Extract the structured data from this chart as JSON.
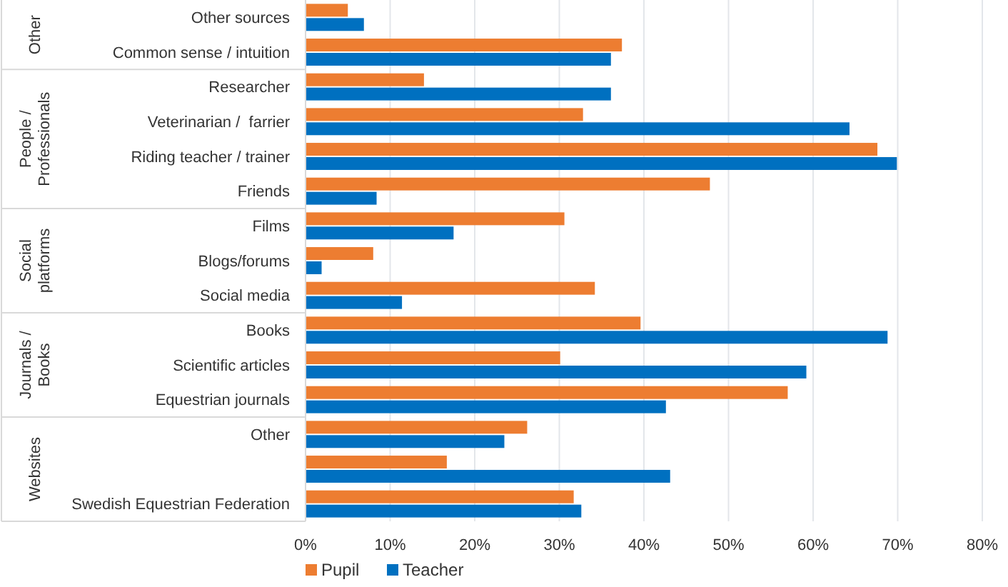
{
  "chart_data": {
    "type": "bar",
    "orientation": "horizontal",
    "categories": [
      "Other sources",
      "Common sense / intuition",
      "Researcher",
      "Veterinarian /  farrier",
      "Riding teacher / trainer",
      "Friends",
      "Films",
      "Blogs/forums",
      "Social media",
      "Books",
      "Scientific articles",
      "Equestrian journals",
      "Other",
      null,
      "Swedish Equestrian Federation"
    ],
    "series": [
      {
        "name": "Pupil",
        "color": "#ed7d31",
        "values": [
          5,
          37.4,
          14,
          32.8,
          67.6,
          47.8,
          30.6,
          8,
          34.2,
          39.6,
          30.1,
          57,
          26.2,
          16.7,
          31.7
        ]
      },
      {
        "name": "Teacher",
        "color": "#0070c0",
        "values": [
          6.9,
          36.1,
          36.1,
          64.3,
          69.9,
          8.4,
          17.5,
          1.9,
          11.4,
          68.8,
          59.2,
          42.6,
          23.5,
          43.1,
          32.6
        ]
      }
    ],
    "xlim": [
      0,
      80
    ],
    "xticks": [
      {
        "value": 0,
        "label": "0%"
      },
      {
        "value": 10,
        "label": "10%"
      },
      {
        "value": 20,
        "label": "20%"
      },
      {
        "value": 30,
        "label": "30%"
      },
      {
        "value": 40,
        "label": "40%"
      },
      {
        "value": 50,
        "label": "50%"
      },
      {
        "value": 60,
        "label": "60%"
      },
      {
        "value": 70,
        "label": "70%"
      },
      {
        "value": 80,
        "label": "80%"
      }
    ],
    "grid": "x",
    "legend": "bottom",
    "annotations": [
      "Other",
      "People / Professionals",
      "Social platforms",
      "Journals / Books",
      "Websites"
    ]
  }
}
